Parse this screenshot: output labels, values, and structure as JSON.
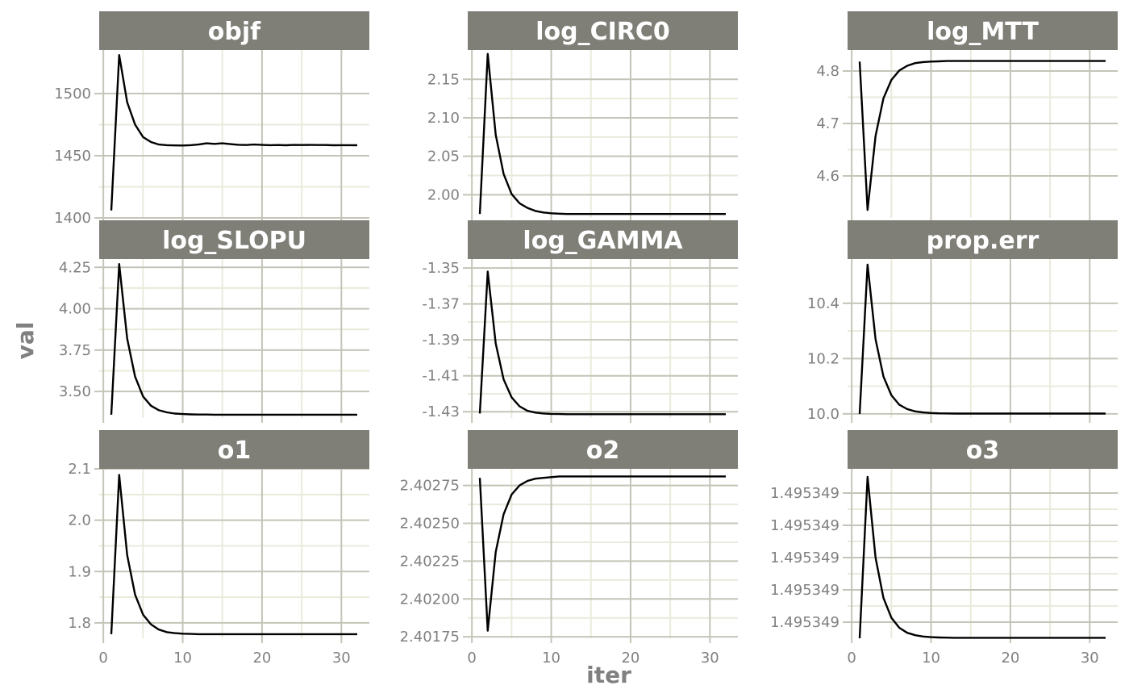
{
  "chart_data": {
    "type": "line",
    "layout": "facet-grid-3x3",
    "xlabel": "iter",
    "ylabel": "val",
    "xlim": [
      1,
      32
    ],
    "x_ticks": [
      0,
      10,
      20,
      30
    ],
    "x_tick_labels": [
      "0",
      "10",
      "20",
      "30"
    ],
    "x": [
      1,
      2,
      3,
      4,
      5,
      6,
      7,
      8,
      9,
      10,
      11,
      12,
      13,
      14,
      15,
      16,
      17,
      18,
      19,
      20,
      21,
      22,
      23,
      24,
      25,
      26,
      27,
      28,
      29,
      30,
      31,
      32
    ],
    "colors": {
      "strip_bg": "#7f7f78",
      "line": "#000000",
      "grid_major": "#c4c4b8",
      "grid_minor": "#eaeadc"
    },
    "panels": [
      {
        "name": "objf",
        "ylim": [
          1400,
          1535
        ],
        "y_ticks": [
          1400,
          1450,
          1500
        ],
        "y_tick_labels": [
          "1400",
          "1450",
          "1500"
        ],
        "values": [
          1406,
          1531,
          1493,
          1475,
          1465,
          1461,
          1459,
          1458.5,
          1458.3,
          1458.2,
          1458.5,
          1459,
          1460,
          1459.5,
          1460,
          1459.3,
          1458.8,
          1458.6,
          1459,
          1458.7,
          1458.5,
          1458.6,
          1458.4,
          1458.7,
          1458.6,
          1458.7,
          1458.6,
          1458.6,
          1458.4,
          1458.5,
          1458.5,
          1458.4
        ]
      },
      {
        "name": "log_CIRC0",
        "ylim": [
          1.97,
          2.188
        ],
        "y_ticks": [
          2.0,
          2.05,
          2.1,
          2.15
        ],
        "y_tick_labels": [
          "2.00",
          "2.05",
          "2.10",
          "2.15"
        ],
        "values": [
          1.975,
          2.183,
          2.078,
          2.027,
          2.001,
          1.989,
          1.983,
          1.979,
          1.977,
          1.976,
          1.9755,
          1.975,
          1.975,
          1.975,
          1.975,
          1.975,
          1.975,
          1.975,
          1.975,
          1.975,
          1.975,
          1.975,
          1.975,
          1.975,
          1.975,
          1.975,
          1.975,
          1.975,
          1.975,
          1.975,
          1.975,
          1.975
        ]
      },
      {
        "name": "log_MTT",
        "ylim": [
          4.52,
          4.84
        ],
        "y_ticks": [
          4.6,
          4.7,
          4.8
        ],
        "y_tick_labels": [
          "4.6",
          "4.7",
          "4.8"
        ],
        "values": [
          4.818,
          4.535,
          4.676,
          4.748,
          4.783,
          4.801,
          4.81,
          4.815,
          4.817,
          4.818,
          4.8185,
          4.819,
          4.819,
          4.819,
          4.819,
          4.819,
          4.819,
          4.819,
          4.819,
          4.819,
          4.819,
          4.819,
          4.819,
          4.819,
          4.819,
          4.819,
          4.819,
          4.819,
          4.819,
          4.819,
          4.819,
          4.819
        ]
      },
      {
        "name": "log_SLOPU",
        "ylim": [
          3.34,
          4.3
        ],
        "y_ticks": [
          3.5,
          3.75,
          4.0,
          4.25
        ],
        "y_tick_labels": [
          "3.50",
          "3.75",
          "4.00",
          "4.25"
        ],
        "values": [
          3.36,
          4.27,
          3.82,
          3.59,
          3.47,
          3.414,
          3.387,
          3.374,
          3.367,
          3.364,
          3.362,
          3.361,
          3.361,
          3.36,
          3.36,
          3.36,
          3.36,
          3.36,
          3.36,
          3.36,
          3.36,
          3.36,
          3.36,
          3.36,
          3.36,
          3.36,
          3.36,
          3.36,
          3.36,
          3.36,
          3.36,
          3.36
        ]
      },
      {
        "name": "log_GAMMA",
        "ylim": [
          -1.4335,
          -1.345
        ],
        "y_ticks": [
          -1.43,
          -1.41,
          -1.39,
          -1.37,
          -1.35
        ],
        "y_tick_labels": [
          "-1.43",
          "-1.41",
          "-1.39",
          "-1.37",
          "-1.35"
        ],
        "values": [
          -1.431,
          -1.352,
          -1.392,
          -1.412,
          -1.422,
          -1.427,
          -1.4295,
          -1.4305,
          -1.431,
          -1.4312,
          -1.4313,
          -1.4314,
          -1.4314,
          -1.4314,
          -1.4314,
          -1.4314,
          -1.4314,
          -1.4314,
          -1.4314,
          -1.4314,
          -1.4314,
          -1.4314,
          -1.4314,
          -1.4314,
          -1.4314,
          -1.4314,
          -1.4314,
          -1.4314,
          -1.4314,
          -1.4314,
          -1.4314,
          -1.4314
        ]
      },
      {
        "name": "prop.err",
        "ylim": [
          9.985,
          10.56
        ],
        "y_ticks": [
          10.0,
          10.2,
          10.4
        ],
        "y_tick_labels": [
          "10.0",
          "10.2",
          "10.4"
        ],
        "values": [
          10.0,
          10.54,
          10.27,
          10.135,
          10.067,
          10.033,
          10.017,
          10.009,
          10.005,
          10.003,
          10.002,
          10.0015,
          10.001,
          10.001,
          10.001,
          10.001,
          10.001,
          10.001,
          10.001,
          10.001,
          10.001,
          10.001,
          10.001,
          10.001,
          10.001,
          10.001,
          10.001,
          10.001,
          10.001,
          10.001,
          10.001,
          10.001
        ]
      },
      {
        "name": "o1",
        "ylim": [
          1.77,
          2.1
        ],
        "y_ticks": [
          1.8,
          1.9,
          2.0,
          2.1
        ],
        "y_tick_labels": [
          "1.8",
          "1.9",
          "2.0",
          "2.1"
        ],
        "values": [
          1.778,
          2.088,
          1.932,
          1.855,
          1.816,
          1.797,
          1.787,
          1.782,
          1.78,
          1.779,
          1.7785,
          1.778,
          1.778,
          1.778,
          1.778,
          1.778,
          1.778,
          1.778,
          1.778,
          1.778,
          1.778,
          1.778,
          1.778,
          1.778,
          1.778,
          1.778,
          1.778,
          1.778,
          1.778,
          1.778,
          1.778,
          1.778
        ]
      },
      {
        "name": "o2",
        "ylim": [
          2.40174,
          2.40286
        ],
        "y_ticks": [
          2.40175,
          2.402,
          2.40225,
          2.4025,
          2.40275
        ],
        "y_tick_labels": [
          "2.40175",
          "2.40200",
          "2.40225",
          "2.40250",
          "2.40275"
        ],
        "values": [
          2.4028,
          2.40179,
          2.40231,
          2.40256,
          2.40269,
          2.40275,
          2.40278,
          2.402795,
          2.4028,
          2.402805,
          2.40281,
          2.40281,
          2.40281,
          2.40281,
          2.40281,
          2.40281,
          2.40281,
          2.40281,
          2.40281,
          2.40281,
          2.40281,
          2.40281,
          2.40281,
          2.40281,
          2.40281,
          2.40281,
          2.40281,
          2.40281,
          2.40281,
          2.40281,
          2.40281,
          2.40281
        ]
      },
      {
        "name": "o3",
        "ylim": [
          0,
          1.05
        ],
        "y_ticks": [
          0.1,
          0.3,
          0.5,
          0.7,
          0.9
        ],
        "y_tick_labels": [
          "1.495349",
          "1.495349",
          "1.495349",
          "1.495349",
          "1.495349"
        ],
        "values": [
          0.0,
          1.0,
          0.5,
          0.25,
          0.127,
          0.065,
          0.034,
          0.019,
          0.011,
          0.007,
          0.005,
          0.004,
          0.003,
          0.003,
          0.003,
          0.003,
          0.003,
          0.003,
          0.003,
          0.003,
          0.003,
          0.003,
          0.003,
          0.003,
          0.003,
          0.003,
          0.003,
          0.003,
          0.003,
          0.003,
          0.003,
          0.003
        ]
      }
    ]
  }
}
